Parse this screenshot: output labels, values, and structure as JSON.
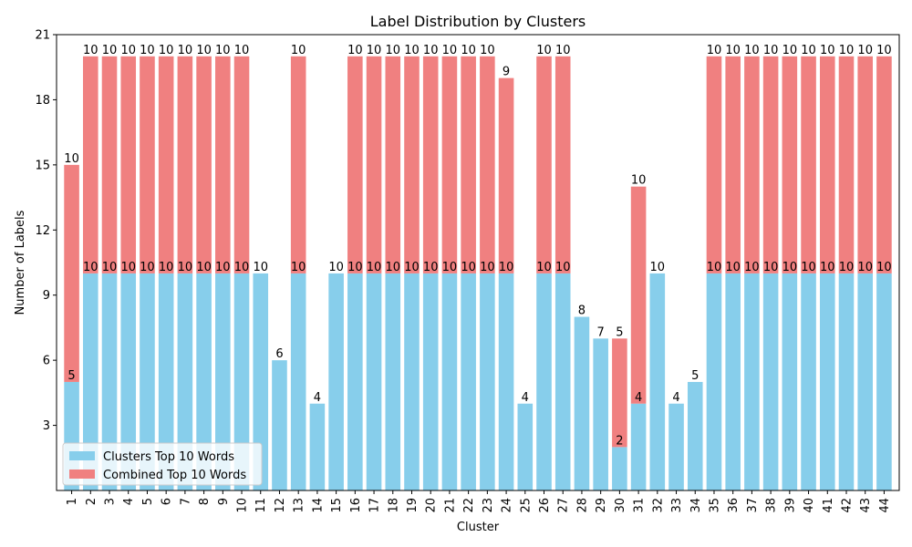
{
  "chart_data": {
    "type": "bar",
    "stacked": true,
    "title": "Label Distribution by Clusters",
    "xlabel": "Cluster",
    "ylabel": "Number of Labels",
    "ylim": [
      0,
      21
    ],
    "yticks": [
      3,
      6,
      9,
      12,
      15,
      18,
      21
    ],
    "grid": false,
    "legend_placement": "lower-left",
    "categories": [
      "1",
      "2",
      "3",
      "4",
      "5",
      "6",
      "7",
      "8",
      "9",
      "10",
      "11",
      "12",
      "13",
      "14",
      "15",
      "16",
      "17",
      "18",
      "19",
      "20",
      "21",
      "22",
      "23",
      "24",
      "25",
      "26",
      "27",
      "28",
      "29",
      "30",
      "31",
      "32",
      "33",
      "34",
      "35",
      "36",
      "37",
      "38",
      "39",
      "40",
      "41",
      "42",
      "43",
      "44"
    ],
    "series": [
      {
        "name": "Clusters Top 10 Words",
        "color": "#87ceeb",
        "values": [
          5,
          10,
          10,
          10,
          10,
          10,
          10,
          10,
          10,
          10,
          10,
          6,
          10,
          4,
          10,
          10,
          10,
          10,
          10,
          10,
          10,
          10,
          10,
          10,
          4,
          10,
          10,
          8,
          7,
          2,
          4,
          10,
          4,
          5,
          10,
          10,
          10,
          10,
          10,
          10,
          10,
          10,
          10,
          10
        ]
      },
      {
        "name": "Combined Top 10 Words",
        "color": "#f08080",
        "values": [
          10,
          10,
          10,
          10,
          10,
          10,
          10,
          10,
          10,
          10,
          null,
          null,
          10,
          null,
          null,
          10,
          10,
          10,
          10,
          10,
          10,
          10,
          10,
          9,
          null,
          10,
          10,
          null,
          null,
          5,
          10,
          null,
          null,
          null,
          10,
          10,
          10,
          10,
          10,
          10,
          10,
          10,
          10,
          10
        ]
      }
    ]
  }
}
